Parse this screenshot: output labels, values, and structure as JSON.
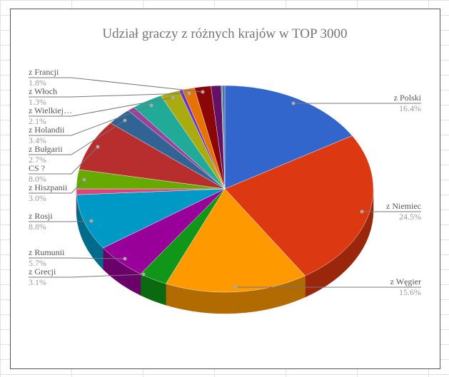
{
  "chart_data": {
    "type": "pie",
    "variant": "3d",
    "title": "Udział graczy z różnych krajów w TOP 3000",
    "start": "top, clockwise",
    "slices": [
      {
        "label": "z Polski",
        "value": 16.4,
        "pct": "16.4%",
        "color": "#3366cc"
      },
      {
        "label": "z Niemiec",
        "value": 24.5,
        "pct": "24.5%",
        "color": "#dc3912"
      },
      {
        "label": "z Węgier",
        "value": 15.6,
        "pct": "15.6%",
        "color": "#ff9900"
      },
      {
        "label": "z Grecji",
        "value": 3.1,
        "pct": "3.1%",
        "color": "#109618"
      },
      {
        "label": "z Rumunii",
        "value": 5.7,
        "pct": "5.7%",
        "color": "#990099"
      },
      {
        "label": "z Rosji",
        "value": 8.8,
        "pct": "8.8%",
        "color": "#0099c6"
      },
      {
        "label": "",
        "value": 0.9,
        "pct": "",
        "color": "#dd4477"
      },
      {
        "label": "z Hiszpanii",
        "value": 3.0,
        "pct": "3.0%",
        "color": "#66aa00"
      },
      {
        "label": "CS ?",
        "value": 8.0,
        "pct": "8.0%",
        "color": "#b82e2e"
      },
      {
        "label": "z Bułgarii",
        "value": 2.7,
        "pct": "2.7%",
        "color": "#316395"
      },
      {
        "label": "",
        "value": 0.8,
        "pct": "",
        "color": "#994499"
      },
      {
        "label": "z Holandii",
        "value": 3.4,
        "pct": "3.4%",
        "color": "#22aa99"
      },
      {
        "label": "z Wielkiej…",
        "value": 2.1,
        "pct": "2.1%",
        "color": "#aaaa11"
      },
      {
        "label": "",
        "value": 0.4,
        "pct": "",
        "color": "#6633cc"
      },
      {
        "label": "z Włoch",
        "value": 1.3,
        "pct": "1.3%",
        "color": "#e67300"
      },
      {
        "label": "z Francji",
        "value": 1.8,
        "pct": "1.8%",
        "color": "#8b0707"
      },
      {
        "label": "",
        "value": 1.1,
        "pct": "",
        "color": "#651067"
      },
      {
        "label": "",
        "value": 0.1,
        "pct": "",
        "color": "#329262"
      },
      {
        "label": "",
        "value": 0.3,
        "pct": "",
        "color": "#5574a6"
      }
    ]
  }
}
